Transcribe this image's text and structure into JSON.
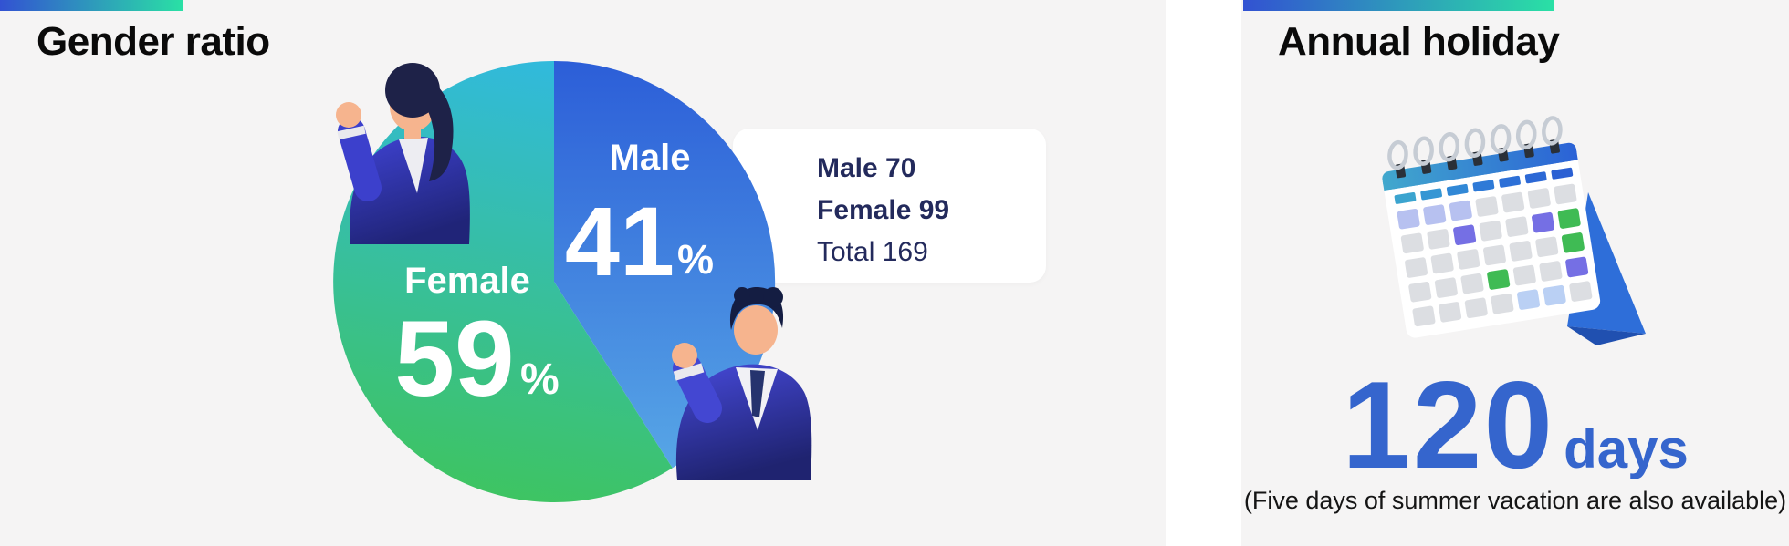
{
  "gender_panel": {
    "title": "Gender ratio",
    "pie": {
      "male_label": "Male",
      "male_value": "41",
      "female_label": "Female",
      "female_value": "59",
      "percent_sign": "%"
    },
    "stats": {
      "male": "Male 70",
      "female": "Female 99",
      "total": "Total 169"
    }
  },
  "holiday_panel": {
    "title": "Annual holiday",
    "days_value": "120",
    "days_unit": "days",
    "note": "(Five days of summer vacation are also available)"
  },
  "chart_data": {
    "type": "pie",
    "title": "Gender ratio",
    "categories": [
      "Male",
      "Female"
    ],
    "values": [
      41,
      59
    ],
    "counts": [
      70,
      99
    ],
    "total": 169,
    "unit": "%",
    "start_angle": "12 o'clock",
    "direction": "clockwise",
    "legend_position": "inside slices",
    "annotations": [
      "Male 70",
      "Female 99",
      "Total 169"
    ],
    "colors": {
      "male_gradient": [
        "#2c5ed8",
        "#57a6e6"
      ],
      "female_gradient": [
        "#31badb",
        "#3ec45f"
      ]
    },
    "related_kpi": {
      "title": "Annual holiday",
      "value": 120,
      "unit": "days",
      "note": "(Five days of summer vacation are also available)"
    }
  },
  "accent_gradient": {
    "from": "#3252d2",
    "to": "#2ae0a5"
  },
  "calendar_icon": {
    "rings": 7,
    "header_colors": [
      "#3ba4cf",
      "#3596d4",
      "#3188d6",
      "#2e7ad7",
      "#2d70d7",
      "#2c68d5",
      "#2b60d3"
    ],
    "palette": {
      "g": "#dcdee2",
      "lp": "#b7c1f0",
      "pu": "#756fe4",
      "gr": "#3fbb54",
      "lb": "#bad0f4"
    },
    "grid": [
      [
        "lp",
        "lp",
        "lp",
        "g",
        "g",
        "g",
        "g"
      ],
      [
        "g",
        "g",
        "pu",
        "g",
        "g",
        "pu",
        "gr"
      ],
      [
        "g",
        "g",
        "g",
        "g",
        "g",
        "g",
        "gr"
      ],
      [
        "g",
        "g",
        "g",
        "gr",
        "g",
        "g",
        "pu"
      ],
      [
        "g",
        "g",
        "g",
        "g",
        "lb",
        "lb",
        "g"
      ]
    ]
  }
}
